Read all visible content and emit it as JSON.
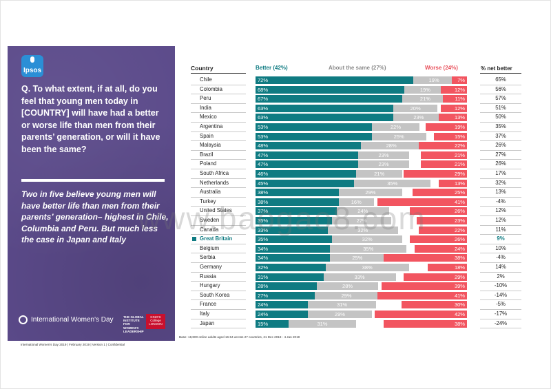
{
  "panel": {
    "logo_text": "Ipsos",
    "question": "Q. To what extent, if at all, do you feel that young men today in [COUNTRY] will have had a better or worse life than men from their parents’ generation, or will it have been the same?",
    "insight": "Two in five believe young men will have better life than men from their parents’ generation– highest in Chile, Columbia and Peru. But much less the case in Japan and Italy",
    "iwd_label": "International Women's Day",
    "giwl_label": "THE GLOBAL INSTITUTE FOR WOMEN'S LEADERSHIP",
    "kings_label": "KING'S College LONDON"
  },
  "footer": "International Women's Day 2019 | February 2019 | Version 1 | Confidential",
  "base_note": "Base: 18,800 online adults aged 16-64 across 27 countries, 21 Dec 2018 - 4 Jan 2019",
  "watermark": "www.baogao8.com",
  "colors": {
    "better": "#0f7b82",
    "same": "#c4c4c4",
    "worse": "#f25560",
    "panel": "#5b4a8a"
  },
  "chart_data": {
    "type": "bar",
    "stacked": true,
    "headers": {
      "country": "Country",
      "better": "Better (42%)",
      "same": "About the same (27%)",
      "worse": "Worse (24%)",
      "net": "% net better"
    },
    "highlight": "Great Britain",
    "categories": [
      "Chile",
      "Colombia",
      "Peru",
      "India",
      "Mexico",
      "Argentina",
      "Spain",
      "Malaysia",
      "Brazil",
      "Poland",
      "South Africa",
      "Netherlands",
      "Australia",
      "Turkey",
      "United States",
      "Sweden",
      "Canada",
      "Great Britain",
      "Belgium",
      "Serbia",
      "Germany",
      "Russia",
      "Hungary",
      "South Korea",
      "France",
      "Italy",
      "Japan"
    ],
    "series": [
      {
        "name": "Better",
        "values": [
          72,
          68,
          67,
          63,
          63,
          53,
          53,
          48,
          47,
          47,
          46,
          45,
          38,
          38,
          37,
          35,
          33,
          35,
          34,
          34,
          32,
          31,
          28,
          27,
          24,
          24,
          15
        ]
      },
      {
        "name": "About the same",
        "values": [
          19,
          19,
          21,
          20,
          23,
          22,
          25,
          28,
          23,
          23,
          21,
          35,
          29,
          16,
          24,
          27,
          32,
          32,
          35,
          25,
          38,
          33,
          28,
          29,
          31,
          29,
          31
        ]
      },
      {
        "name": "Worse",
        "values": [
          7,
          12,
          11,
          12,
          13,
          19,
          15,
          22,
          21,
          21,
          29,
          13,
          25,
          41,
          26,
          23,
          22,
          26,
          24,
          38,
          18,
          29,
          39,
          41,
          30,
          42,
          38
        ]
      }
    ],
    "net": [
      "65%",
      "56%",
      "57%",
      "51%",
      "50%",
      "35%",
      "37%",
      "26%",
      "27%",
      "26%",
      "17%",
      "32%",
      "13%",
      "-4%",
      "12%",
      "12%",
      "11%",
      "9%",
      "10%",
      "-4%",
      "14%",
      "2%",
      "-10%",
      "-14%",
      "-5%",
      "-17%",
      "-24%"
    ]
  }
}
